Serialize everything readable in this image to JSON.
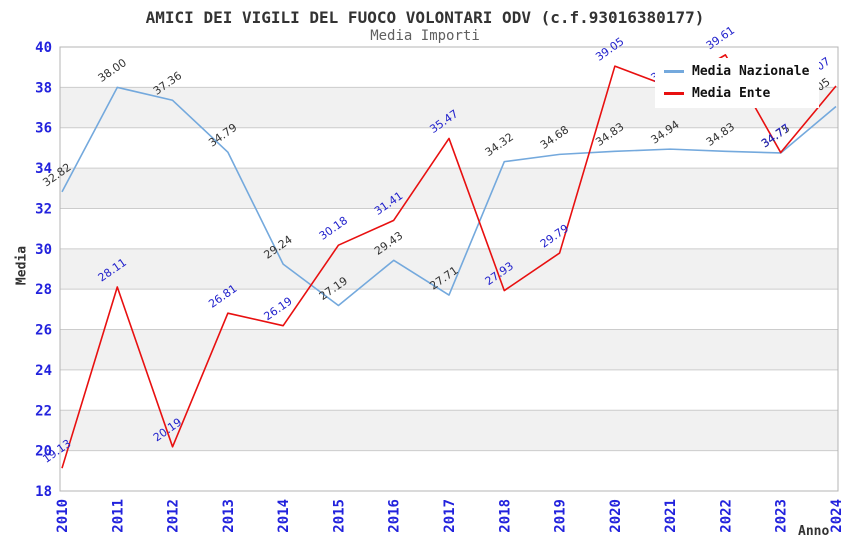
{
  "header": {
    "title": "AMICI DEI VIGILI DEL FUOCO VOLONTARI ODV (c.f.93016380177)",
    "subtitle": "Media Importi"
  },
  "axes": {
    "y_label": "Media",
    "x_label": "Anno"
  },
  "legend": {
    "items": [
      {
        "label": "Media Nazionale",
        "color": "#74a9dd"
      },
      {
        "label": "Media Ente",
        "color": "#e81010"
      }
    ]
  },
  "chart_data": {
    "type": "line",
    "title": "AMICI DEI VIGILI DEL FUOCO VOLONTARI ODV (c.f.93016380177)",
    "subtitle": "Media Importi",
    "xlabel": "Anno",
    "ylabel": "Media",
    "x": [
      2010,
      2011,
      2012,
      2013,
      2014,
      2015,
      2016,
      2017,
      2018,
      2019,
      2020,
      2021,
      2022,
      2023,
      2024
    ],
    "ylim": [
      18,
      40
    ],
    "ytick_step": 2,
    "grid": true,
    "legend_position": "top-right",
    "band_color": "#f1f1f1",
    "grid_color": "#cccccc",
    "border_color": "#b4b4b4",
    "tick_color": "#2222dd",
    "series": [
      {
        "name": "Media Nazionale",
        "color": "#74a9dd",
        "label_color": "#333333",
        "values": [
          32.82,
          38.0,
          37.36,
          34.79,
          29.24,
          27.19,
          29.43,
          27.71,
          34.32,
          34.68,
          34.83,
          34.94,
          34.83,
          34.75,
          37.05
        ]
      },
      {
        "name": "Media Ente",
        "color": "#e81010",
        "label_color": "#2222cc",
        "values": [
          19.13,
          28.11,
          20.19,
          26.81,
          26.19,
          30.18,
          31.41,
          35.47,
          27.93,
          29.79,
          39.05,
          38.02,
          39.61,
          34.77,
          38.07
        ]
      }
    ]
  }
}
